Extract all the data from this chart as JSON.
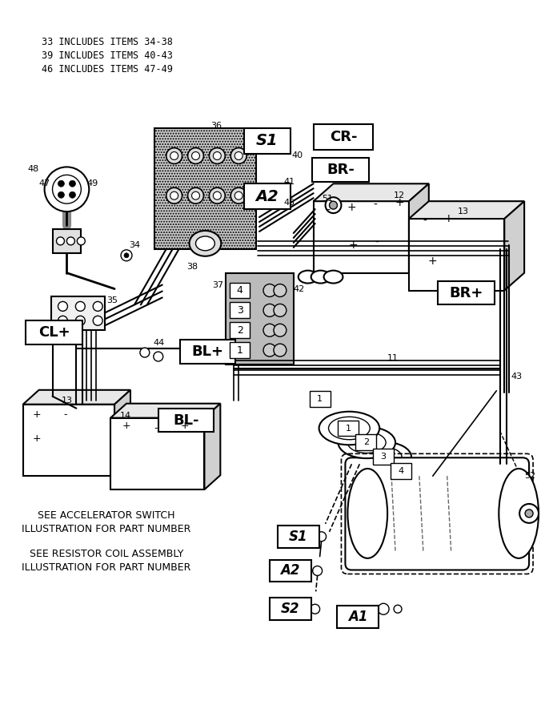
{
  "bg_color": "#ffffff",
  "fig_width": 6.76,
  "fig_height": 9.05,
  "dpi": 100,
  "notes": [
    "33 INCLUDES ITEMS 34-38",
    "39 INCLUDES ITEMS 40-43",
    "46 INCLUDES ITEMS 47-49"
  ],
  "bottom_text1": [
    "SEE ACCELERATOR SWITCH",
    "ILLUSTRATION FOR PART NUMBER"
  ],
  "bottom_text2": [
    "SEE RESISTOR COIL ASSEMBLY",
    "ILLUSTRATION FOR PART NUMBER"
  ]
}
